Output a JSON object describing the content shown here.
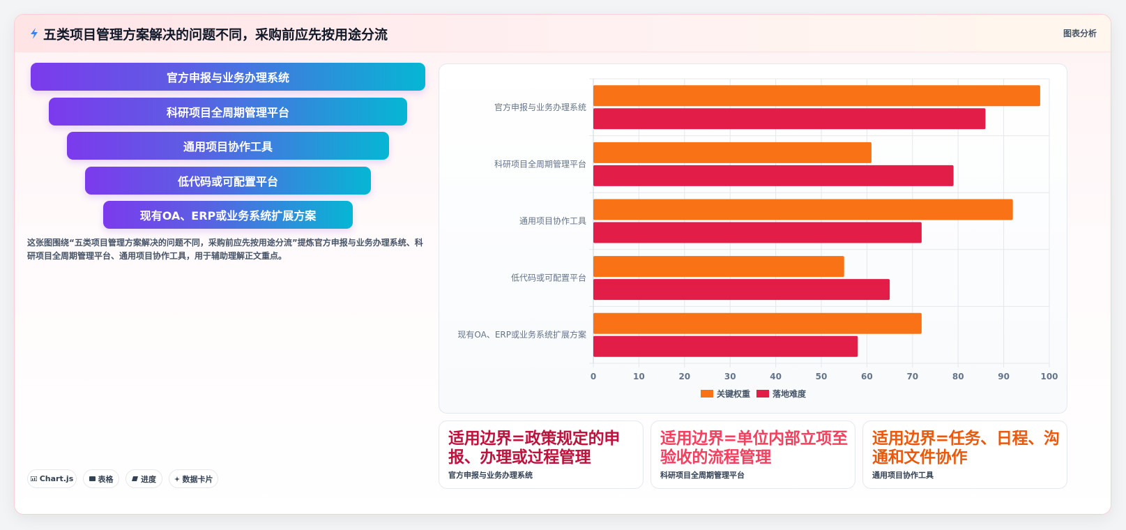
{
  "header": {
    "title": "五类项目管理方案解决的问题不同，采购前应先按用途分流",
    "tag": "图表分析",
    "icon": "lightning-icon"
  },
  "funnel": {
    "items": [
      "官方申报与业务办理系统",
      "科研项目全周期管理平台",
      "通用项目协作工具",
      "低代码或可配置平台",
      "现有OA、ERP或业务系统扩展方案"
    ]
  },
  "description": "这张图围绕“五类项目管理方案解决的问题不同，采购前应先按用途分流”提炼官方申报与业务办理系统、科研项目全周期管理平台、通用项目协作工具，用于辅助理解正文重点。",
  "chips": [
    {
      "label": "Chart.js",
      "icon": "chart-icon"
    },
    {
      "label": "表格",
      "icon": "table-icon"
    },
    {
      "label": "进度",
      "icon": "progress-icon"
    },
    {
      "label": "数据卡片",
      "icon": "sparkle-icon"
    }
  ],
  "chart_data": {
    "type": "bar",
    "orientation": "horizontal",
    "categories": [
      "官方申报与业务办理系统",
      "科研项目全周期管理平台",
      "通用项目协作工具",
      "低代码或可配置平台",
      "现有OA、ERP或业务系统扩展方案"
    ],
    "series": [
      {
        "name": "关键权重",
        "color": "#f97316",
        "values": [
          98,
          61,
          92,
          55,
          72
        ]
      },
      {
        "name": "落地难度",
        "color": "#e11d48",
        "values": [
          86,
          79,
          72,
          65,
          58
        ]
      }
    ],
    "xlim": [
      0,
      100
    ],
    "xticks": [
      0,
      10,
      20,
      30,
      40,
      50,
      60,
      70,
      80,
      90,
      100
    ],
    "grid": true,
    "legend": "bottom"
  },
  "kpis": [
    {
      "value": "适用边界=政策规定的申报、办理或过程管理",
      "label": "官方申报与业务办理系统",
      "color": "#be123c"
    },
    {
      "value": "适用边界=单位内部立项至验收的流程管理",
      "label": "科研项目全周期管理平台",
      "color": "#f43f5e"
    },
    {
      "value": "适用边界=任务、日程、沟通和文件协作",
      "label": "通用项目协作工具",
      "color": "#ea580c"
    }
  ]
}
